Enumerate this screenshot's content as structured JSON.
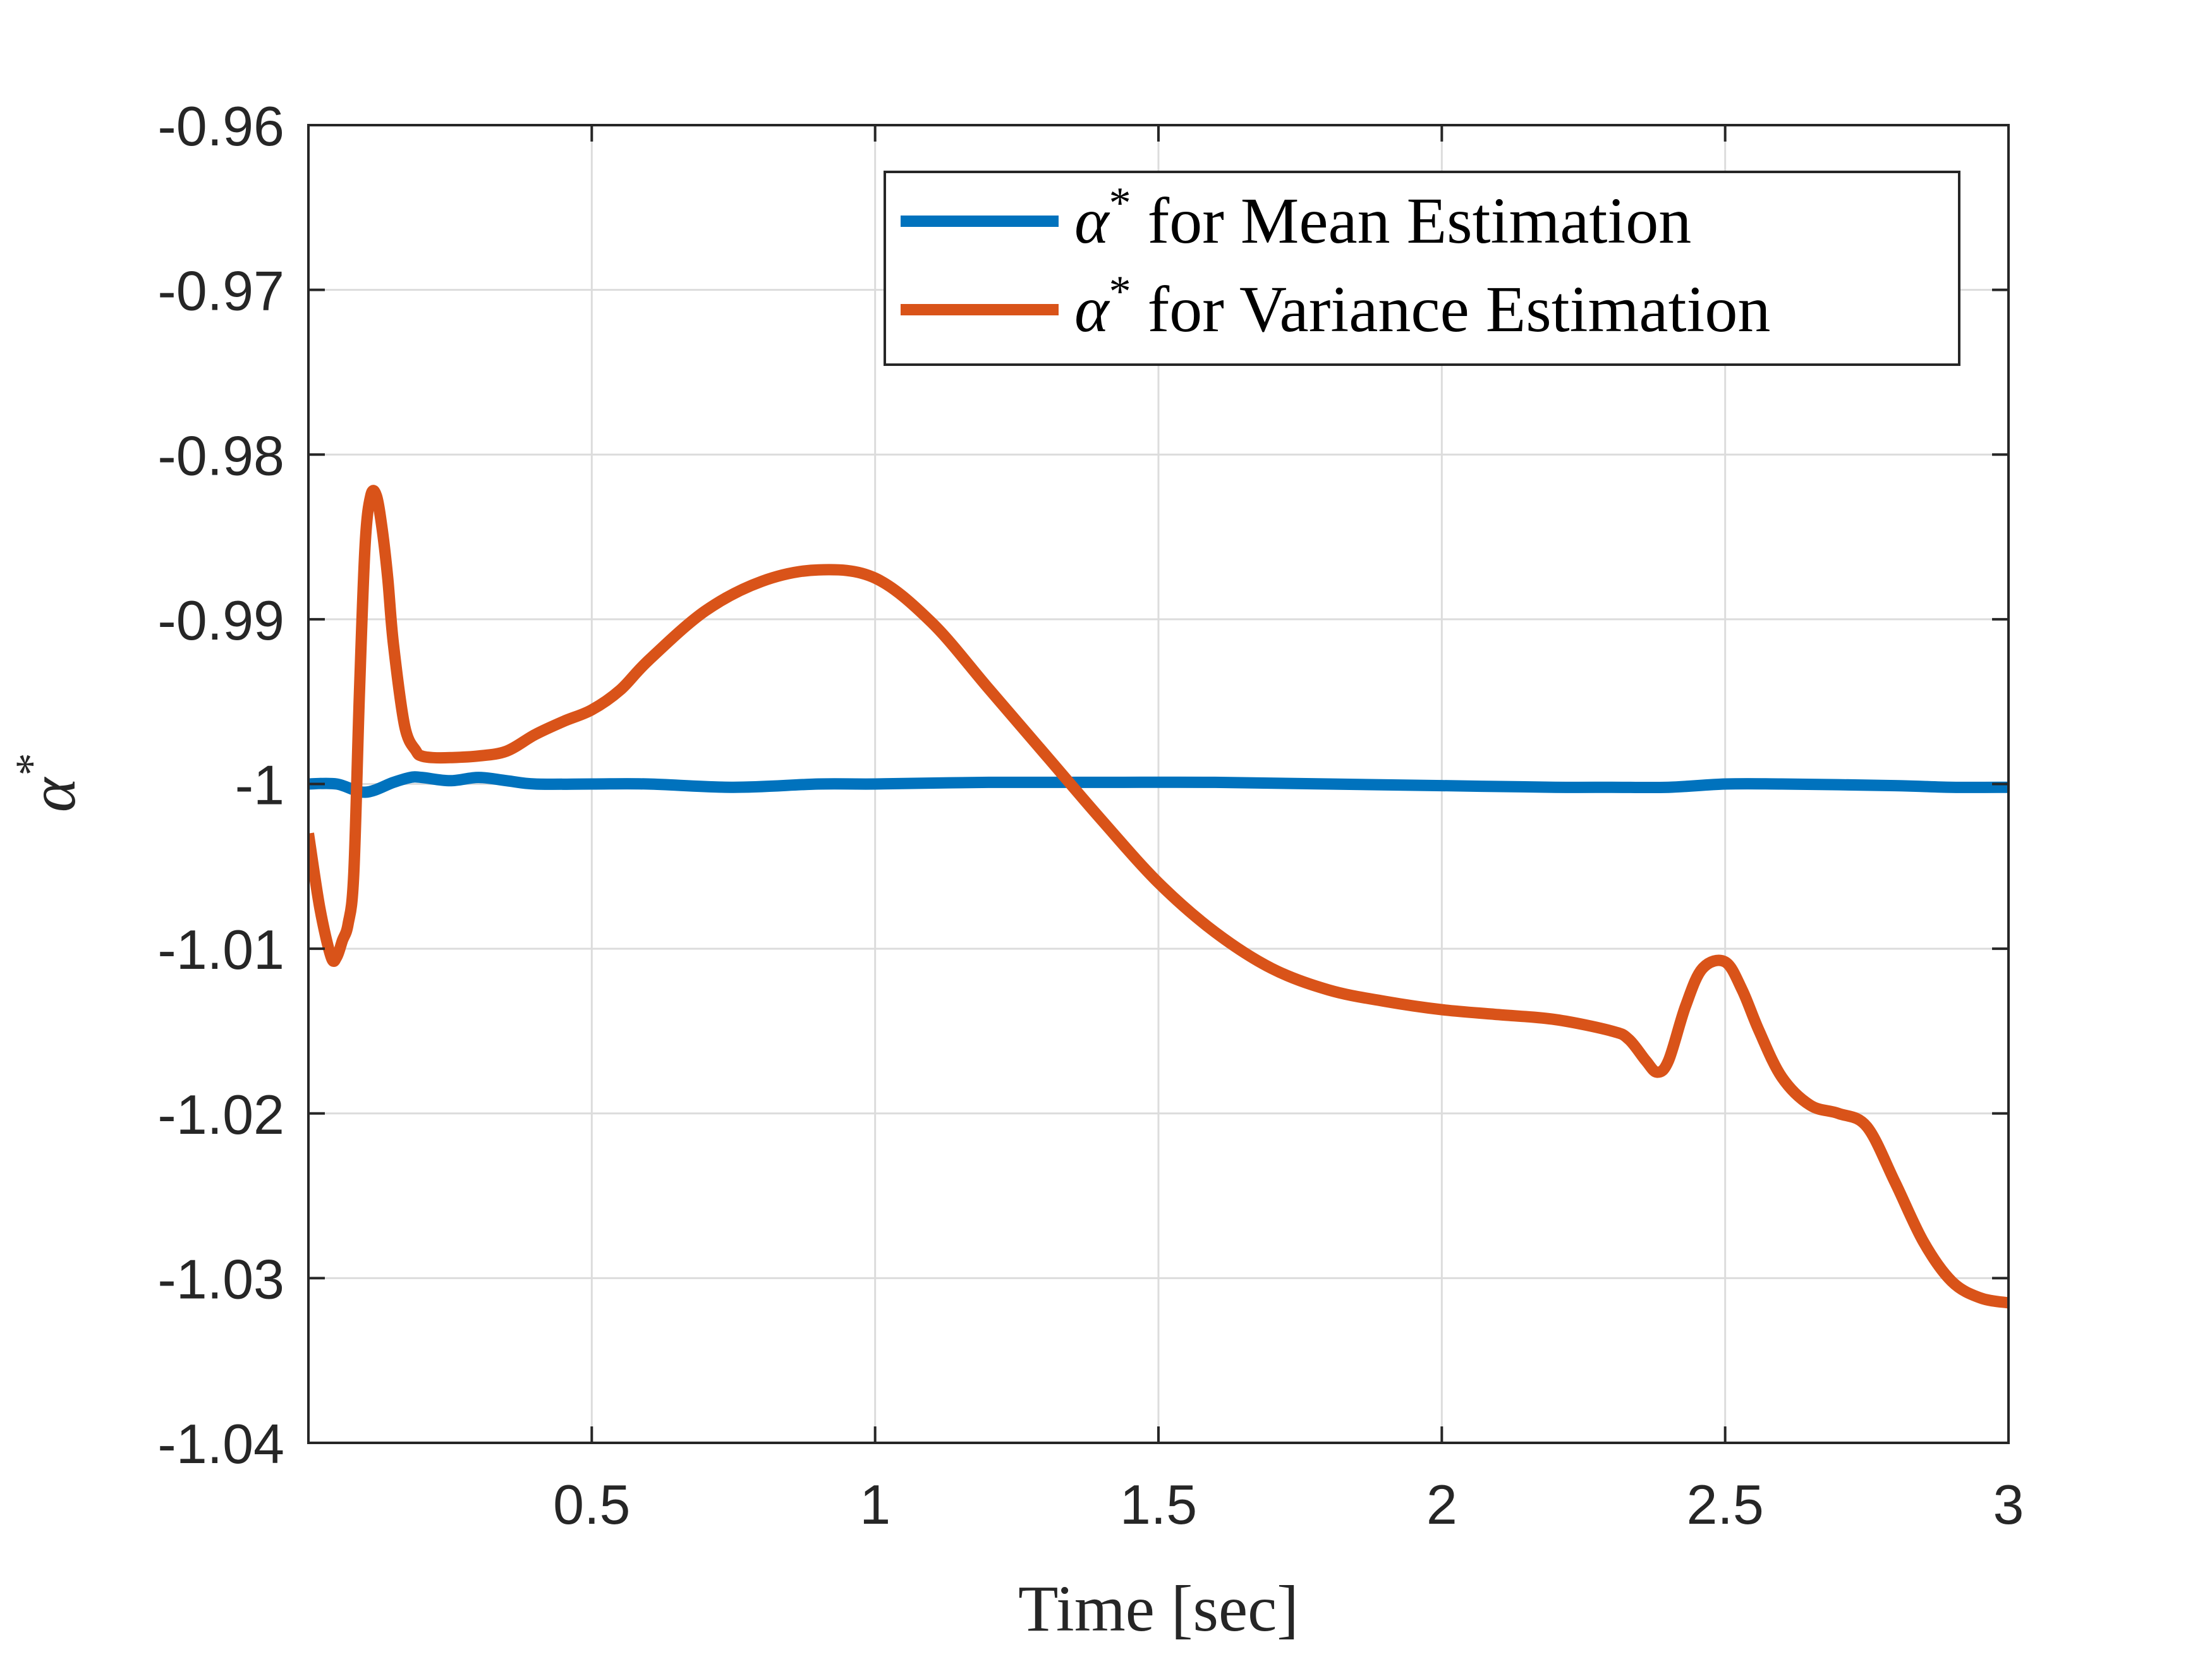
{
  "chart_data": {
    "type": "line",
    "title": "",
    "xlabel": "Time [sec]",
    "ylabel": "α*",
    "xlim": [
      0,
      3
    ],
    "ylim": [
      -1.04,
      -0.96
    ],
    "grid": true,
    "legend_position": "top-right",
    "x_ticks": [
      0.5,
      1,
      1.5,
      2,
      2.5,
      3
    ],
    "x_tick_labels": [
      "0.5",
      "1",
      "1.5",
      "2",
      "2.5",
      "3"
    ],
    "y_ticks": [
      -1.04,
      -1.03,
      -1.02,
      -1.01,
      -1.0,
      -0.99,
      -0.98,
      -0.97,
      -0.96
    ],
    "y_tick_labels": [
      "-1.04",
      "-1.03",
      "-1.02",
      "-1.01",
      "-1",
      "-0.99",
      "-0.98",
      "-0.97",
      "-0.96"
    ],
    "series": [
      {
        "name": "α* for Mean Estimation",
        "legend_symbol": "α",
        "legend_superscript": "*",
        "legend_label": "for Mean Estimation",
        "color": "#0072BD",
        "x": [
          0,
          0.05,
          0.1,
          0.15,
          0.18,
          0.2,
          0.25,
          0.3,
          0.35,
          0.4,
          0.5,
          0.6,
          0.75,
          0.9,
          1.0,
          1.2,
          1.4,
          1.6,
          1.8,
          2.0,
          2.2,
          2.3,
          2.4,
          2.5,
          2.6,
          2.8,
          2.9,
          3.0
        ],
        "y": [
          -1.0,
          -1.0,
          -1.0005,
          -0.9999,
          -0.9996,
          -0.9996,
          -0.9998,
          -0.9996,
          -0.9998,
          -1.0,
          -1.0,
          -1.0,
          -1.0002,
          -1.0,
          -1.0,
          -0.9999,
          -0.9999,
          -0.9999,
          -1.0,
          -1.0001,
          -1.0002,
          -1.0002,
          -1.0002,
          -1.0,
          -1.0,
          -1.0001,
          -1.0002,
          -1.0002
        ]
      },
      {
        "name": "α* for Variance Estimation",
        "legend_symbol": "α",
        "legend_superscript": "*",
        "legend_label": "for Variance Estimation",
        "color": "#D95319",
        "x": [
          0,
          0.02,
          0.04,
          0.05,
          0.06,
          0.07,
          0.08,
          0.09,
          0.1,
          0.11,
          0.12,
          0.13,
          0.14,
          0.15,
          0.17,
          0.19,
          0.2,
          0.22,
          0.25,
          0.3,
          0.35,
          0.4,
          0.45,
          0.5,
          0.55,
          0.6,
          0.7,
          0.8,
          0.9,
          1.0,
          1.1,
          1.2,
          1.3,
          1.4,
          1.5,
          1.6,
          1.7,
          1.8,
          1.9,
          2.0,
          2.1,
          2.2,
          2.3,
          2.33,
          2.36,
          2.38,
          2.4,
          2.43,
          2.46,
          2.5,
          2.53,
          2.56,
          2.6,
          2.65,
          2.7,
          2.75,
          2.8,
          2.85,
          2.9,
          2.95,
          3.0
        ],
        "y": [
          -1.003,
          -1.0075,
          -1.0105,
          -1.0105,
          -1.0095,
          -1.0085,
          -1.0055,
          -0.9945,
          -0.9855,
          -0.9825,
          -0.9825,
          -0.9845,
          -0.9875,
          -0.9915,
          -0.9965,
          -0.998,
          -0.9983,
          -0.9984,
          -0.9984,
          -0.9983,
          -0.998,
          -0.997,
          -0.9962,
          -0.9955,
          -0.9943,
          -0.9925,
          -0.9895,
          -0.9877,
          -0.987,
          -0.9875,
          -0.9902,
          -0.9942,
          -0.9982,
          -1.0022,
          -1.006,
          -1.009,
          -1.0112,
          -1.0125,
          -1.0132,
          -1.0137,
          -1.014,
          -1.0143,
          -1.015,
          -1.0155,
          -1.0168,
          -1.0175,
          -1.0168,
          -1.0135,
          -1.0112,
          -1.0108,
          -1.0125,
          -1.015,
          -1.0178,
          -1.0195,
          -1.02,
          -1.0208,
          -1.0242,
          -1.0278,
          -1.0302,
          -1.0312,
          -1.0315
        ]
      }
    ]
  }
}
